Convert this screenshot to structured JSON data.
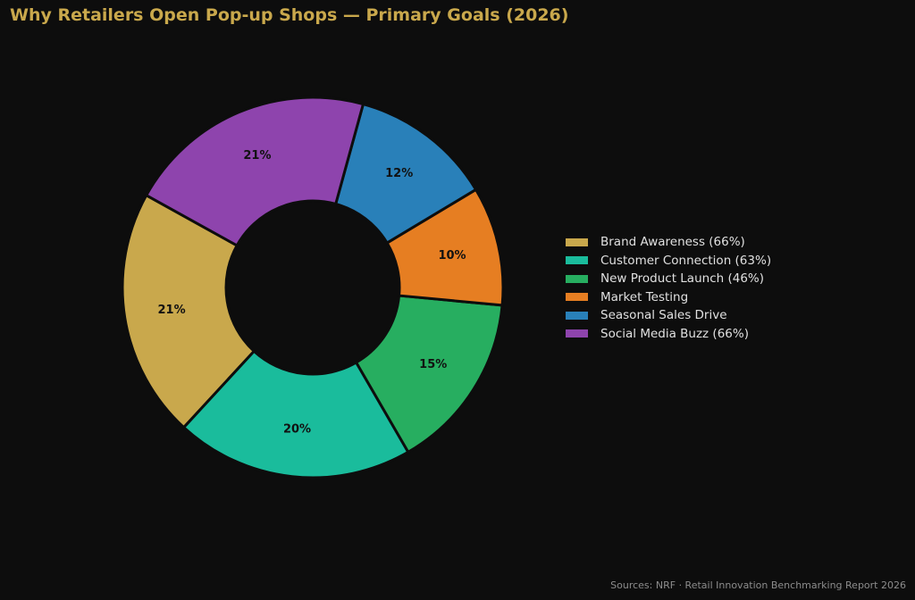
{
  "chart_data": {
    "type": "pie",
    "variant": "donut",
    "title": "Why Retailers Open Pop-up Shops — Primary Goals (2026)",
    "slices": [
      {
        "label": "Brand Awareness (66%)",
        "value": 21,
        "display": "21%",
        "color": "#c9a84c"
      },
      {
        "label": "Customer Connection (63%)",
        "value": 20,
        "display": "20%",
        "color": "#1abc9c"
      },
      {
        "label": "New Product Launch (46%)",
        "value": 15,
        "display": "15%",
        "color": "#27ae60"
      },
      {
        "label": "Market Testing",
        "value": 10,
        "display": "10%",
        "color": "#e67e22"
      },
      {
        "label": "Seasonal Sales Drive",
        "value": 12,
        "display": "12%",
        "color": "#2980b9"
      },
      {
        "label": "Social Media Buzz (66%)",
        "value": 21,
        "display": "21%",
        "color": "#8e44ad"
      }
    ],
    "legend_position": "right",
    "source": "Sources: NRF · Retail Innovation Benchmarking Report 2026"
  },
  "colors": {
    "background": "#0d0d0d",
    "title": "#c9a84c",
    "edge": "#0d0d0d",
    "slice_label": "#111111",
    "legend_text": "#e0e0e0",
    "source_text": "#8c8c8c"
  }
}
